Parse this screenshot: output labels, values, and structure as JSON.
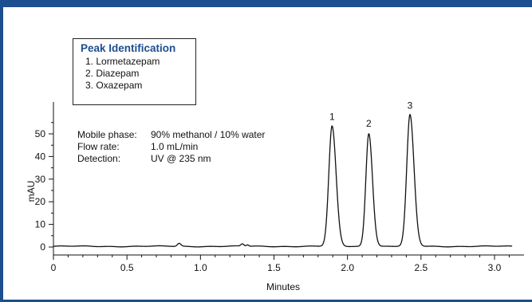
{
  "legend": {
    "title": "Peak Identification",
    "items": [
      "1. Lormetazepam",
      "2. Diazepam",
      "3. Oxazepam"
    ]
  },
  "conditions": [
    {
      "label": "Mobile phase:",
      "value": "90% methanol / 10% water"
    },
    {
      "label": "Flow rate:",
      "value": "1.0 mL/min"
    },
    {
      "label": "Detection:",
      "value": "UV @ 235 nm"
    }
  ],
  "chart_data": {
    "type": "line",
    "xlabel": "Minutes",
    "ylabel": "mAU",
    "xlim": [
      0,
      3.2
    ],
    "ylim": [
      -2,
      62
    ],
    "x_ticks": [
      0,
      0.5,
      1.0,
      1.5,
      2.0,
      2.5,
      3.0
    ],
    "x_tick_labels": [
      "0",
      "0.5",
      "1.0",
      "1.5",
      "2.0",
      "2.5",
      "3.0"
    ],
    "y_ticks": [
      0,
      10,
      20,
      30,
      40,
      50
    ],
    "y_tick_labels": [
      "0",
      "10",
      "20",
      "30",
      "40",
      "50"
    ],
    "grid": false,
    "baseline": 0.3,
    "peaks": [
      {
        "label": "1",
        "x": 1.895,
        "height": 53,
        "sigma": 0.022
      },
      {
        "label": "2",
        "x": 2.145,
        "height": 50,
        "sigma": 0.02
      },
      {
        "label": "3",
        "x": 2.425,
        "height": 58,
        "sigma": 0.022
      }
    ],
    "minor_peaks": [
      {
        "x": 0.855,
        "height": 1.3,
        "sigma": 0.012
      },
      {
        "x": 1.285,
        "height": 1.0,
        "sigma": 0.01
      },
      {
        "x": 1.32,
        "height": 0.6,
        "sigma": 0.008
      }
    ]
  }
}
